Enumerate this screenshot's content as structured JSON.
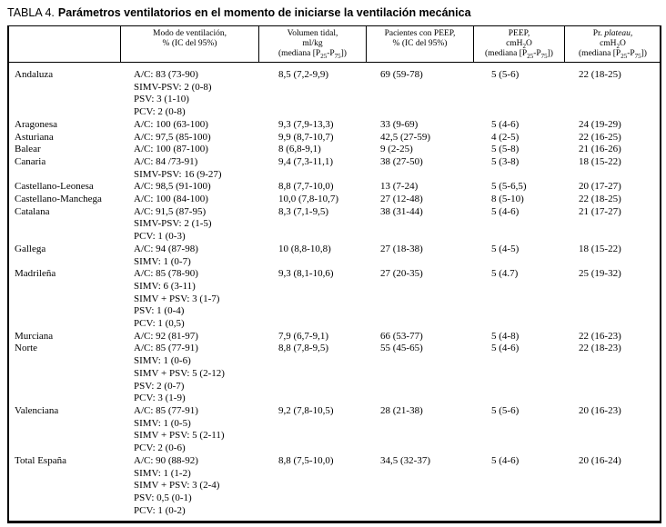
{
  "title": {
    "label": "TABLA 4.",
    "text": "Parámetros ventilatorios en el momento de iniciarse la ventilación mecánica"
  },
  "colors": {
    "text": "#000000",
    "border": "#000000",
    "background": "#ffffff"
  },
  "table": {
    "columns": [
      {
        "id": "region",
        "lines": []
      },
      {
        "id": "modo",
        "lines": [
          "Modo de ventilación,",
          "% (IC del 95%)"
        ]
      },
      {
        "id": "volumen_tidal",
        "lines": [
          "Volumen tidal,",
          "ml/kg",
          "(mediana [P~25~-P~75~])"
        ]
      },
      {
        "id": "pacientes_peep",
        "lines": [
          "Pacientes con PEEP,",
          "% (IC del 95%)"
        ]
      },
      {
        "id": "peep",
        "lines": [
          "PEEP,",
          "cmH~2~O",
          "(mediana [P~25~-P~75~])"
        ]
      },
      {
        "id": "plateau",
        "lines": [
          "Pr. *plateau*,",
          "cmH~2~O",
          "(mediana [P~25~-P~75~])"
        ]
      }
    ],
    "rows": [
      {
        "region": "Andaluza",
        "modes": [
          "A/C: 83 (73-90)",
          "SIMV-PSV: 2 (0-8)",
          "PSV: 3 (1-10)",
          "PCV: 2 (0-8)"
        ],
        "volumen_tidal": "8,5 (7,2-9,9)",
        "pacientes_peep": "69 (59-78)",
        "peep": "5 (5-6)",
        "plateau": "22 (18-25)"
      },
      {
        "region": "Aragonesa",
        "modes": [
          "A/C: 100 (63-100)"
        ],
        "volumen_tidal": "9,3 (7,9-13,3)",
        "pacientes_peep": "33 (9-69)",
        "peep": "5 (4-6)",
        "plateau": "24 (19-29)"
      },
      {
        "region": "Asturiana",
        "modes": [
          "A/C: 97,5 (85-100)"
        ],
        "volumen_tidal": "9,9 (8,7-10,7)",
        "pacientes_peep": "42,5 (27-59)",
        "peep": "4 (2-5)",
        "plateau": "22 (16-25)"
      },
      {
        "region": "Balear",
        "modes": [
          "A/C: 100 (87-100)"
        ],
        "volumen_tidal": "8 (6,8-9,1)",
        "pacientes_peep": "9 (2-25)",
        "peep": "5 (5-8)",
        "plateau": "21 (16-26)"
      },
      {
        "region": "Canaria",
        "modes": [
          "A/C: 84 /73-91)",
          "SIMV-PSV: 16 (9-27)"
        ],
        "volumen_tidal": "9,4 (7,3-11,1)",
        "pacientes_peep": "38 (27-50)",
        "peep": "5 (3-8)",
        "plateau": "18 (15-22)"
      },
      {
        "region": "Castellano-Leonesa",
        "modes": [
          "A/C: 98,5 (91-100)"
        ],
        "volumen_tidal": "8,8 (7,7-10,0)",
        "pacientes_peep": "13 (7-24)",
        "peep": "5 (5-6,5)",
        "plateau": "20 (17-27)"
      },
      {
        "region": "Castellano-Manchega",
        "modes": [
          "A/C: 100 (84-100)"
        ],
        "volumen_tidal": "10,0 (7,8-10,7)",
        "pacientes_peep": "27 (12-48)",
        "peep": "8 (5-10)",
        "plateau": "22 (18-25)"
      },
      {
        "region": "Catalana",
        "modes": [
          "A/C: 91,5 (87-95)",
          "SIMV-PSV: 2 (1-5)",
          "PCV: 1 (0-3)"
        ],
        "volumen_tidal": "8,3 (7,1-9,5)",
        "pacientes_peep": "38 (31-44)",
        "peep": "5 (4-6)",
        "plateau": "21 (17-27)"
      },
      {
        "region": "Gallega",
        "modes": [
          "A/C: 94 (87-98)",
          "SIMV: 1 (0-7)"
        ],
        "volumen_tidal": "10 (8,8-10,8)",
        "pacientes_peep": "27 (18-38)",
        "peep": "5 (4-5)",
        "plateau": "18 (15-22)"
      },
      {
        "region": "Madrileña",
        "modes": [
          "A/C: 85 (78-90)",
          "SIMV: 6 (3-11)",
          "SIMV + PSV: 3 (1-7)",
          "PSV: 1 (0-4)",
          "PCV: 1 (0,5)"
        ],
        "volumen_tidal": "9,3 (8,1-10,6)",
        "pacientes_peep": "27 (20-35)",
        "peep": "5 (4.7)",
        "plateau": "25 (19-32)"
      },
      {
        "region": "Murciana",
        "modes": [
          "A/C: 92 (81-97)"
        ],
        "volumen_tidal": "7,9 (6,7-9,1)",
        "pacientes_peep": "66 (53-77)",
        "peep": "5 (4-8)",
        "plateau": "22 (16-23)"
      },
      {
        "region": "Norte",
        "modes": [
          "A/C: 85 (77-91)",
          "SIMV: 1 (0-6)",
          "SIMV + PSV: 5 (2-12)",
          "PSV: 2 (0-7)",
          "PCV: 3 (1-9)"
        ],
        "volumen_tidal": "8,8 (7,8-9,5)",
        "pacientes_peep": "55 (45-65)",
        "peep": "5 (4-6)",
        "plateau": "22 (18-23)"
      },
      {
        "region": "Valenciana",
        "modes": [
          "A/C: 85 (77-91)",
          "SIMV: 1 (0-5)",
          "SIMV + PSV: 5 (2-11)",
          "PCV: 2 (0-6)"
        ],
        "volumen_tidal": "9,2 (7,8-10,5)",
        "pacientes_peep": "28 (21-38)",
        "peep": "5 (5-6)",
        "plateau": "20 (16-23)"
      },
      {
        "region": "Total España",
        "modes": [
          "A/C: 90 (88-92)",
          "SIMV: 1 (1-2)",
          "SIMV + PSV: 3 (2-4)",
          "PSV: 0,5 (0-1)",
          "PCV: 1 (0-2)"
        ],
        "volumen_tidal": "8,8 (7,5-10,0)",
        "pacientes_peep": "34,5 (32-37)",
        "peep": "5 (4-6)",
        "plateau": "20 (16-24)"
      }
    ]
  }
}
